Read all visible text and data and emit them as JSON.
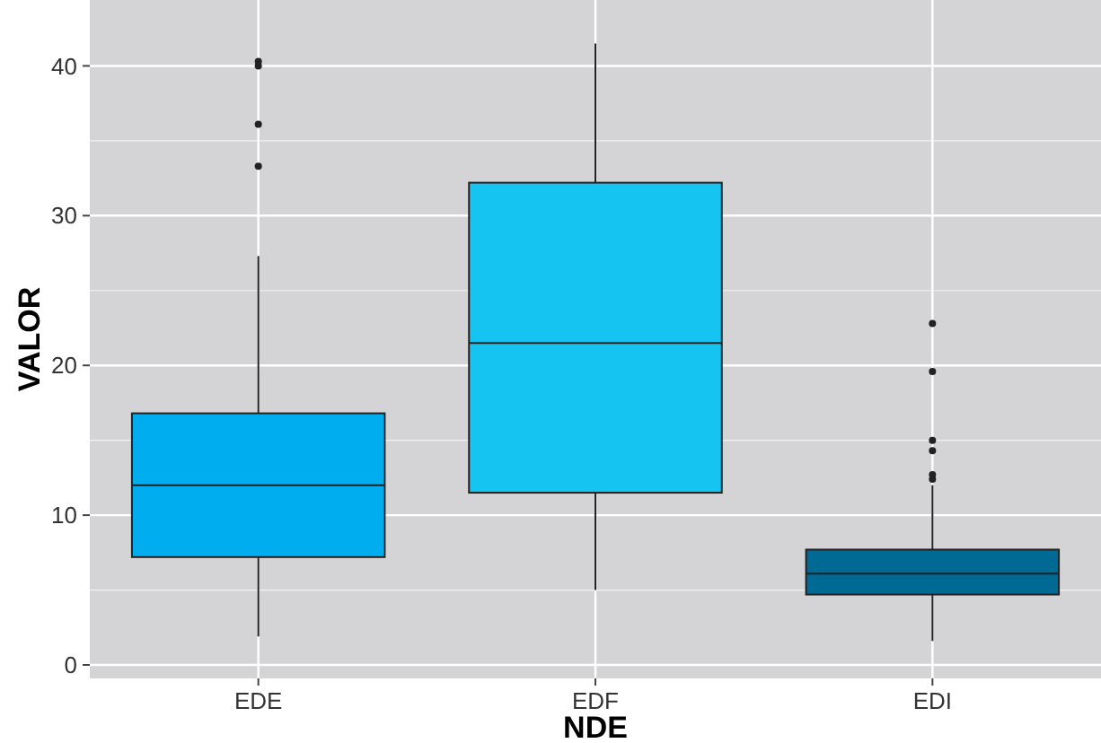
{
  "chart_data": {
    "type": "box",
    "xlabel": "NDE",
    "ylabel": "VALOR",
    "categories": [
      "EDE",
      "EDF",
      "EDI"
    ],
    "colors": [
      "#00aeef",
      "#16c4f2",
      "#006994"
    ],
    "boxes": [
      {
        "low": 1.9,
        "q1": 7.2,
        "median": 12.0,
        "q3": 16.8,
        "high": 27.3,
        "outliers": [
          33.3,
          36.1,
          40.0,
          40.3
        ]
      },
      {
        "low": 5.0,
        "q1": 11.5,
        "median": 21.5,
        "q3": 32.2,
        "high": 41.5
      },
      {
        "low": 1.6,
        "q1": 4.7,
        "median": 6.1,
        "q3": 7.7,
        "high": 12.0,
        "outliers": [
          12.4,
          12.7,
          14.3,
          15.0,
          19.6,
          22.8
        ]
      }
    ],
    "ylim": [
      -0.9,
      44.4
    ],
    "yticks": [
      0,
      10,
      20,
      30,
      40
    ],
    "grid": true
  }
}
